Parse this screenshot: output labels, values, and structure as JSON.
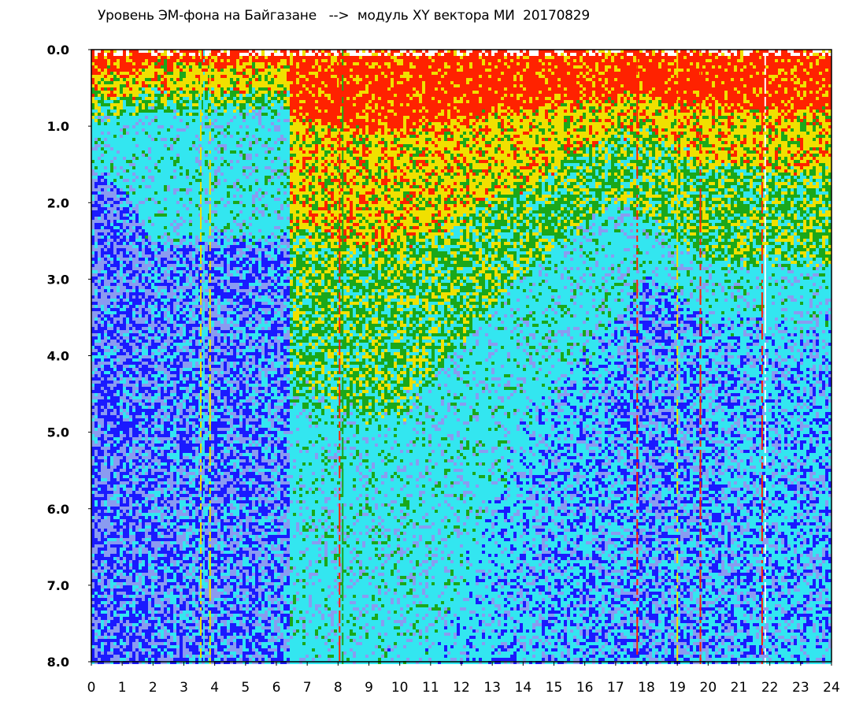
{
  "chart_data": {
    "type": "heatmap",
    "title": "Уровень ЭМ-фона на Байгазане   -->  модуль XY вектора МИ  20170829",
    "xlabel": "",
    "ylabel": "",
    "xlim": [
      0,
      24
    ],
    "ylim": [
      8.0,
      0.0
    ],
    "y_inverted": true,
    "x_ticks": [
      "0",
      "1",
      "2",
      "3",
      "4",
      "5",
      "6",
      "7",
      "8",
      "9",
      "10",
      "11",
      "12",
      "13",
      "14",
      "15",
      "16",
      "17",
      "18",
      "19",
      "20",
      "21",
      "22",
      "23",
      "24"
    ],
    "y_ticks": [
      "0.0",
      "1.0",
      "2.0",
      "3.0",
      "4.0",
      "5.0",
      "6.0",
      "7.0",
      "8.0"
    ],
    "colormap": [
      "#1a1aff",
      "#8a9bf0",
      "#33e6f0",
      "#1aa81a",
      "#f0e000",
      "#ff2200"
    ],
    "colormap_meaning": "low level (blue) to high level (red)",
    "hourly_profile": [
      {
        "hour": 0,
        "red_top": 0.3,
        "yellow_depth": 0.6,
        "green_depth": 0.9,
        "cyan_depth": 1.6,
        "blue_fraction": 0.85
      },
      {
        "hour": 1,
        "red_top": 0.3,
        "yellow_depth": 0.6,
        "green_depth": 0.85,
        "cyan_depth": 1.8,
        "blue_fraction": 0.8
      },
      {
        "hour": 2,
        "red_top": 0.2,
        "yellow_depth": 0.55,
        "green_depth": 0.8,
        "cyan_depth": 2.5,
        "blue_fraction": 0.75
      },
      {
        "hour": 3,
        "red_top": 0.2,
        "yellow_depth": 0.6,
        "green_depth": 0.8,
        "cyan_depth": 2.5,
        "blue_fraction": 0.7
      },
      {
        "hour": 4,
        "red_top": 0.2,
        "yellow_depth": 0.55,
        "green_depth": 0.8,
        "cyan_depth": 2.5,
        "blue_fraction": 0.75
      },
      {
        "hour": 5,
        "red_top": 0.2,
        "yellow_depth": 0.55,
        "green_depth": 0.8,
        "cyan_depth": 2.5,
        "blue_fraction": 0.75
      },
      {
        "hour": 6,
        "red_top": 0.2,
        "yellow_depth": 0.55,
        "green_depth": 0.8,
        "cyan_depth": 2.5,
        "blue_fraction": 0.7
      },
      {
        "hour": 7,
        "red_top": 0.9,
        "yellow_depth": 2.4,
        "green_depth": 4.5,
        "cyan_depth": 8.0,
        "blue_fraction": 0.05
      },
      {
        "hour": 8,
        "red_top": 1.0,
        "yellow_depth": 2.5,
        "green_depth": 4.6,
        "cyan_depth": 8.0,
        "blue_fraction": 0.05
      },
      {
        "hour": 9,
        "red_top": 1.1,
        "yellow_depth": 2.6,
        "green_depth": 4.8,
        "cyan_depth": 8.0,
        "blue_fraction": 0.05
      },
      {
        "hour": 10,
        "red_top": 1.1,
        "yellow_depth": 2.6,
        "green_depth": 4.7,
        "cyan_depth": 8.0,
        "blue_fraction": 0.05
      },
      {
        "hour": 11,
        "red_top": 1.0,
        "yellow_depth": 2.4,
        "green_depth": 4.3,
        "cyan_depth": 8.0,
        "blue_fraction": 0.1
      },
      {
        "hour": 12,
        "red_top": 0.9,
        "yellow_depth": 2.2,
        "green_depth": 3.8,
        "cyan_depth": 7.0,
        "blue_fraction": 0.2
      },
      {
        "hour": 13,
        "red_top": 0.85,
        "yellow_depth": 2.0,
        "green_depth": 3.4,
        "cyan_depth": 6.0,
        "blue_fraction": 0.3
      },
      {
        "hour": 14,
        "red_top": 0.8,
        "yellow_depth": 1.8,
        "green_depth": 3.0,
        "cyan_depth": 5.0,
        "blue_fraction": 0.4
      },
      {
        "hour": 15,
        "red_top": 0.75,
        "yellow_depth": 1.6,
        "green_depth": 2.6,
        "cyan_depth": 4.5,
        "blue_fraction": 0.45
      },
      {
        "hour": 16,
        "red_top": 0.7,
        "yellow_depth": 1.3,
        "green_depth": 2.3,
        "cyan_depth": 4.0,
        "blue_fraction": 0.5
      },
      {
        "hour": 17,
        "red_top": 0.6,
        "yellow_depth": 1.1,
        "green_depth": 2.0,
        "cyan_depth": 3.6,
        "blue_fraction": 0.55
      },
      {
        "hour": 18,
        "red_top": 0.6,
        "yellow_depth": 1.1,
        "green_depth": 2.2,
        "cyan_depth": 3.0,
        "blue_fraction": 0.7
      },
      {
        "hour": 19,
        "red_top": 0.7,
        "yellow_depth": 1.3,
        "green_depth": 2.5,
        "cyan_depth": 3.3,
        "blue_fraction": 0.6
      },
      {
        "hour": 20,
        "red_top": 0.8,
        "yellow_depth": 1.5,
        "green_depth": 2.7,
        "cyan_depth": 3.5,
        "blue_fraction": 0.55
      },
      {
        "hour": 21,
        "red_top": 0.8,
        "yellow_depth": 1.5,
        "green_depth": 2.8,
        "cyan_depth": 3.6,
        "blue_fraction": 0.5
      },
      {
        "hour": 22,
        "red_top": 0.8,
        "yellow_depth": 1.6,
        "green_depth": 2.8,
        "cyan_depth": 3.6,
        "blue_fraction": 0.45
      },
      {
        "hour": 23,
        "red_top": 0.8,
        "yellow_depth": 1.6,
        "green_depth": 2.8,
        "cyan_depth": 3.6,
        "blue_fraction": 0.45
      },
      {
        "hour": 24,
        "red_top": 0.8,
        "yellow_depth": 1.6,
        "green_depth": 2.8,
        "cyan_depth": 3.6,
        "blue_fraction": 0.45
      }
    ],
    "vertical_streaks": [
      {
        "hour": 3.55,
        "color": "#f0e000"
      },
      {
        "hour": 3.65,
        "color": "#33e6f0"
      },
      {
        "hour": 3.85,
        "color": "#f0e000"
      },
      {
        "hour": 8.05,
        "color": "#ff2200"
      },
      {
        "hour": 8.15,
        "color": "#1aa81a"
      },
      {
        "hour": 17.7,
        "color": "#ff2200"
      },
      {
        "hour": 19.0,
        "color": "#f0e000"
      },
      {
        "hour": 19.75,
        "color": "#ff2200"
      },
      {
        "hour": 21.75,
        "color": "#ff2200"
      },
      {
        "hour": 21.85,
        "color": "#ffffff"
      }
    ],
    "grid": false,
    "legend": "none"
  }
}
